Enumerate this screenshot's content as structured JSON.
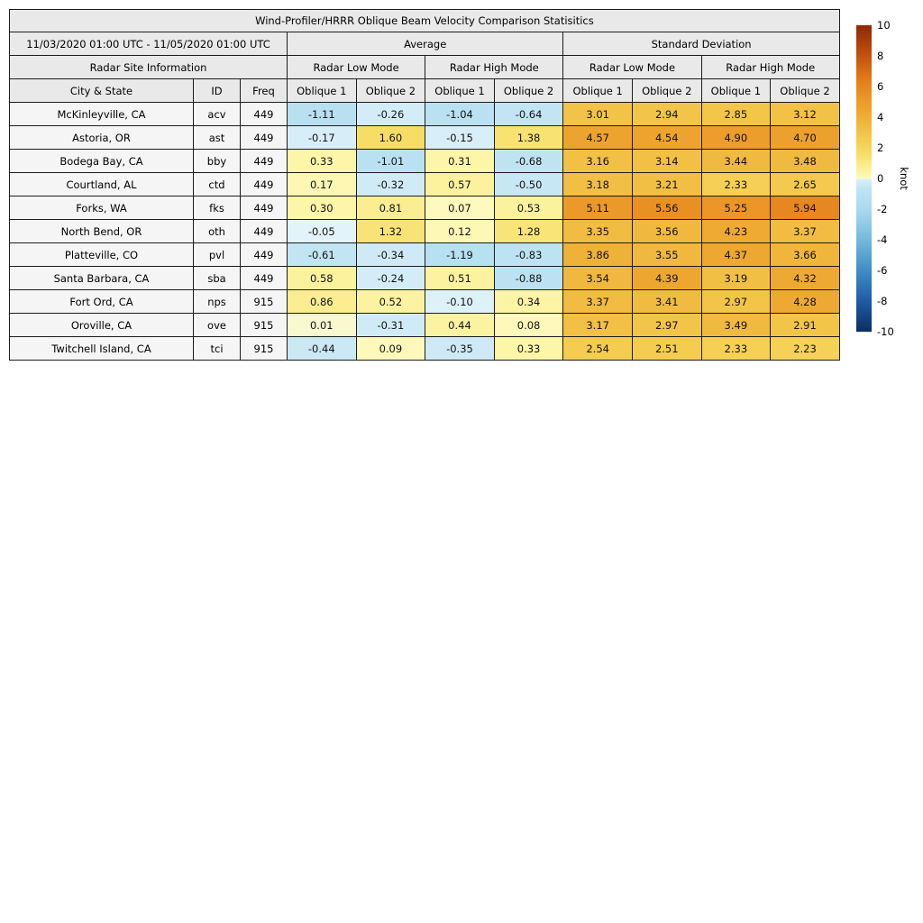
{
  "chart_data": {
    "type": "table",
    "title": "Wind-Profiler/HRRR Oblique Beam Velocity Comparison Statisitics",
    "subtitle_date_range": "11/03/2020 01:00 UTC - 11/05/2020 01:00 UTC",
    "group_headers": {
      "average": "Average",
      "standard_deviation": "Standard Deviation"
    },
    "site_info_header": "Radar Site Information",
    "mode_headers": {
      "low": "Radar Low Mode",
      "high": "Radar High Mode"
    },
    "column_headers": {
      "city": "City & State",
      "id": "ID",
      "freq": "Freq",
      "oblique1": "Oblique 1",
      "oblique2": "Oblique 2"
    },
    "value_columns": [
      "avg_low_oblique1",
      "avg_low_oblique2",
      "avg_high_oblique1",
      "avg_high_oblique2",
      "std_low_oblique1",
      "std_low_oblique2",
      "std_high_oblique1",
      "std_high_oblique2"
    ],
    "value_format_decimals": 2,
    "rows": [
      {
        "city": "McKinleyville, CA",
        "id": "acv",
        "freq": "449",
        "values": [
          -1.11,
          -0.26,
          -1.04,
          -0.64,
          3.01,
          2.94,
          2.85,
          3.12
        ]
      },
      {
        "city": "Astoria, OR",
        "id": "ast",
        "freq": "449",
        "values": [
          -0.17,
          1.6,
          -0.15,
          1.38,
          4.57,
          4.54,
          4.9,
          4.7
        ]
      },
      {
        "city": "Bodega Bay, CA",
        "id": "bby",
        "freq": "449",
        "values": [
          0.33,
          -1.01,
          0.31,
          -0.68,
          3.16,
          3.14,
          3.44,
          3.48
        ]
      },
      {
        "city": "Courtland, AL",
        "id": "ctd",
        "freq": "449",
        "values": [
          0.17,
          -0.32,
          0.57,
          -0.5,
          3.18,
          3.21,
          2.33,
          2.65
        ]
      },
      {
        "city": "Forks, WA",
        "id": "fks",
        "freq": "449",
        "values": [
          0.3,
          0.81,
          0.07,
          0.53,
          5.11,
          5.56,
          5.25,
          5.94
        ]
      },
      {
        "city": "North Bend, OR",
        "id": "oth",
        "freq": "449",
        "values": [
          -0.05,
          1.32,
          0.12,
          1.28,
          3.35,
          3.56,
          4.23,
          3.37
        ]
      },
      {
        "city": "Platteville, CO",
        "id": "pvl",
        "freq": "449",
        "values": [
          -0.61,
          -0.34,
          -1.19,
          -0.83,
          3.86,
          3.55,
          4.37,
          3.66
        ]
      },
      {
        "city": "Santa Barbara, CA",
        "id": "sba",
        "freq": "449",
        "values": [
          0.58,
          -0.24,
          0.51,
          -0.88,
          3.54,
          4.39,
          3.19,
          4.32
        ]
      },
      {
        "city": "Fort Ord, CA",
        "id": "nps",
        "freq": "915",
        "values": [
          0.86,
          0.52,
          -0.1,
          0.34,
          3.37,
          3.41,
          2.97,
          4.28
        ]
      },
      {
        "city": "Oroville, CA",
        "id": "ove",
        "freq": "915",
        "values": [
          0.01,
          -0.31,
          0.44,
          0.08,
          3.17,
          2.97,
          3.49,
          2.91
        ]
      },
      {
        "city": "Twitchell Island, CA",
        "id": "tci",
        "freq": "915",
        "values": [
          -0.44,
          0.09,
          -0.35,
          0.33,
          2.54,
          2.51,
          2.33,
          2.23
        ]
      }
    ],
    "colorbar": {
      "label": "knot",
      "min": -10,
      "max": 10,
      "ticks": [
        10,
        8,
        6,
        4,
        2,
        0,
        -2,
        -4,
        -6,
        -8,
        -10
      ],
      "gradient_stops": [
        [
          -10,
          "#0b2e63"
        ],
        [
          -8,
          "#1f5ba8"
        ],
        [
          -6,
          "#3f8ec4"
        ],
        [
          -4,
          "#74b9dc"
        ],
        [
          -2,
          "#abdaef"
        ],
        [
          -0.7,
          "#bfe3f2"
        ],
        [
          -0.15,
          "#d8eef8"
        ],
        [
          -0.02,
          "#e6f5fa"
        ],
        [
          0.02,
          "#fefac0"
        ],
        [
          0.3,
          "#fdf5a8"
        ],
        [
          0.8,
          "#fbee93"
        ],
        [
          1.6,
          "#f7dd66"
        ],
        [
          2.5,
          "#f4cd50"
        ],
        [
          3.5,
          "#f0b93f"
        ],
        [
          4.5,
          "#eda52f"
        ],
        [
          5.5,
          "#ea9124"
        ],
        [
          6.5,
          "#e07b18"
        ],
        [
          8,
          "#c4520c"
        ],
        [
          10,
          "#8d2908"
        ]
      ]
    }
  }
}
